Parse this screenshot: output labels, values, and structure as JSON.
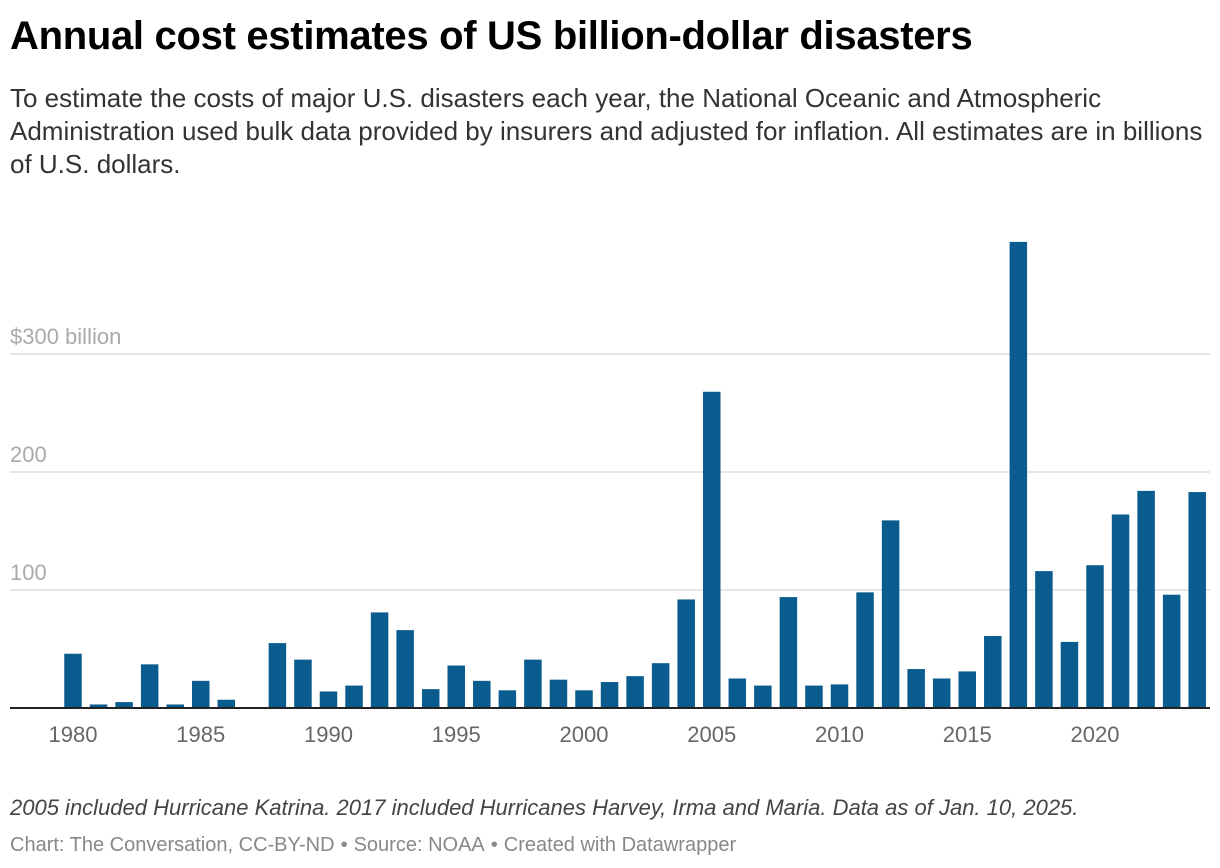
{
  "header": {
    "title": "Annual cost estimates of US billion-dollar disasters",
    "subtitle": "To estimate the costs of major U.S. disasters each year, the National Oceanic and Atmospheric Administration used bulk data provided by insurers and adjusted for inflation. All estimates are in billions of U.S. dollars."
  },
  "footer": {
    "notes": "2005 included Hurricane Katrina. 2017 included Hurricanes Harvey, Irma and Maria. Data as of Jan. 10, 2025.",
    "credit": "Chart: The Conversation, CC-BY-ND",
    "source": "Source: NOAA",
    "tool": "Created with Datawrapper",
    "separator": "•"
  },
  "colors": {
    "bar": "#0b5c8e",
    "grid": "#dddddd",
    "axis": "#222222",
    "tick_label": "#666666",
    "y_label": "#aaaaaa"
  },
  "chart_data": {
    "type": "bar",
    "x": [
      1980,
      1981,
      1982,
      1983,
      1984,
      1985,
      1986,
      1987,
      1988,
      1989,
      1990,
      1991,
      1992,
      1993,
      1994,
      1995,
      1996,
      1997,
      1998,
      1999,
      2000,
      2001,
      2002,
      2003,
      2004,
      2005,
      2006,
      2007,
      2008,
      2009,
      2010,
      2011,
      2012,
      2013,
      2014,
      2015,
      2016,
      2017,
      2018,
      2019,
      2020,
      2021,
      2022,
      2023,
      2024
    ],
    "values": [
      46,
      3,
      5,
      37,
      3,
      23,
      7,
      0,
      55,
      41,
      14,
      19,
      81,
      66,
      16,
      36,
      23,
      15,
      41,
      24,
      15,
      22,
      27,
      38,
      92,
      268,
      25,
      19,
      94,
      19,
      20,
      98,
      159,
      33,
      25,
      31,
      61,
      395,
      116,
      56,
      121,
      164,
      184,
      96,
      183
    ],
    "ylim": [
      0,
      400
    ],
    "y_ticks": [
      {
        "value": 100,
        "label": "100"
      },
      {
        "value": 200,
        "label": "200"
      },
      {
        "value": 300,
        "label": "$300 billion"
      }
    ],
    "x_ticks": [
      1980,
      1985,
      1990,
      1995,
      2000,
      2005,
      2010,
      2015,
      2020
    ],
    "grid": true
  }
}
